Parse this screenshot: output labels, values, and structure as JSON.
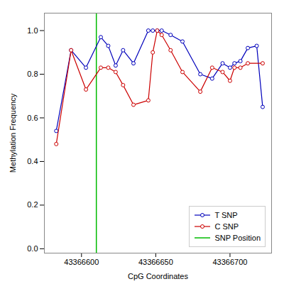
{
  "chart_data": {
    "type": "line",
    "xlabel": "CpG Coordinates",
    "ylabel": "Methylation Frequency",
    "xlim": [
      43366575,
      43366728
    ],
    "xticks": [
      43366600,
      43366650,
      43366700
    ],
    "ylim": [
      -0.02,
      1.08
    ],
    "yticks": [
      {
        "value": 0.0,
        "label": "0.0"
      },
      0.2,
      0.4,
      0.6,
      0.8,
      {
        "value": 1.0,
        "label": "1.0"
      }
    ],
    "grid": false,
    "legend": "lower right",
    "series": [
      {
        "name": "T SNP",
        "type": "line",
        "color": "#0000bb",
        "marker": "open_circle",
        "line_style": "solid",
        "x": [
          43366583,
          43366593,
          43366603,
          43366613,
          43366618,
          43366623,
          43366628,
          43366635,
          43366645,
          43366648,
          43366651,
          43366654,
          43366660,
          43366668,
          43366680,
          43366688,
          43366695,
          43366700,
          43366703,
          43366707,
          43366712,
          43366718,
          43366722
        ],
        "values": [
          0.54,
          0.91,
          0.83,
          0.97,
          0.93,
          0.84,
          0.91,
          0.85,
          1.0,
          1.0,
          1.0,
          1.0,
          0.98,
          0.95,
          0.8,
          0.78,
          0.85,
          0.83,
          0.85,
          0.86,
          0.92,
          0.93,
          0.65
        ]
      },
      {
        "name": "C SNP",
        "type": "line",
        "color": "#cc0000",
        "marker": "open_circle",
        "line_style": "solid",
        "x": [
          43366583,
          43366593,
          43366603,
          43366613,
          43366618,
          43366623,
          43366628,
          43366635,
          43366645,
          43366648,
          43366651,
          43366654,
          43366660,
          43366668,
          43366680,
          43366688,
          43366695,
          43366700,
          43366703,
          43366707,
          43366712,
          43366722
        ],
        "values": [
          0.48,
          0.91,
          0.73,
          0.83,
          0.83,
          0.81,
          0.75,
          0.66,
          0.68,
          0.9,
          1.0,
          0.98,
          0.91,
          0.81,
          0.72,
          0.83,
          0.81,
          0.77,
          0.83,
          0.83,
          0.85,
          0.85
        ]
      },
      {
        "name": "SNP Position",
        "type": "vline",
        "color": "#00bb00",
        "line_style": "solid",
        "x": [
          43366610
        ]
      }
    ]
  }
}
